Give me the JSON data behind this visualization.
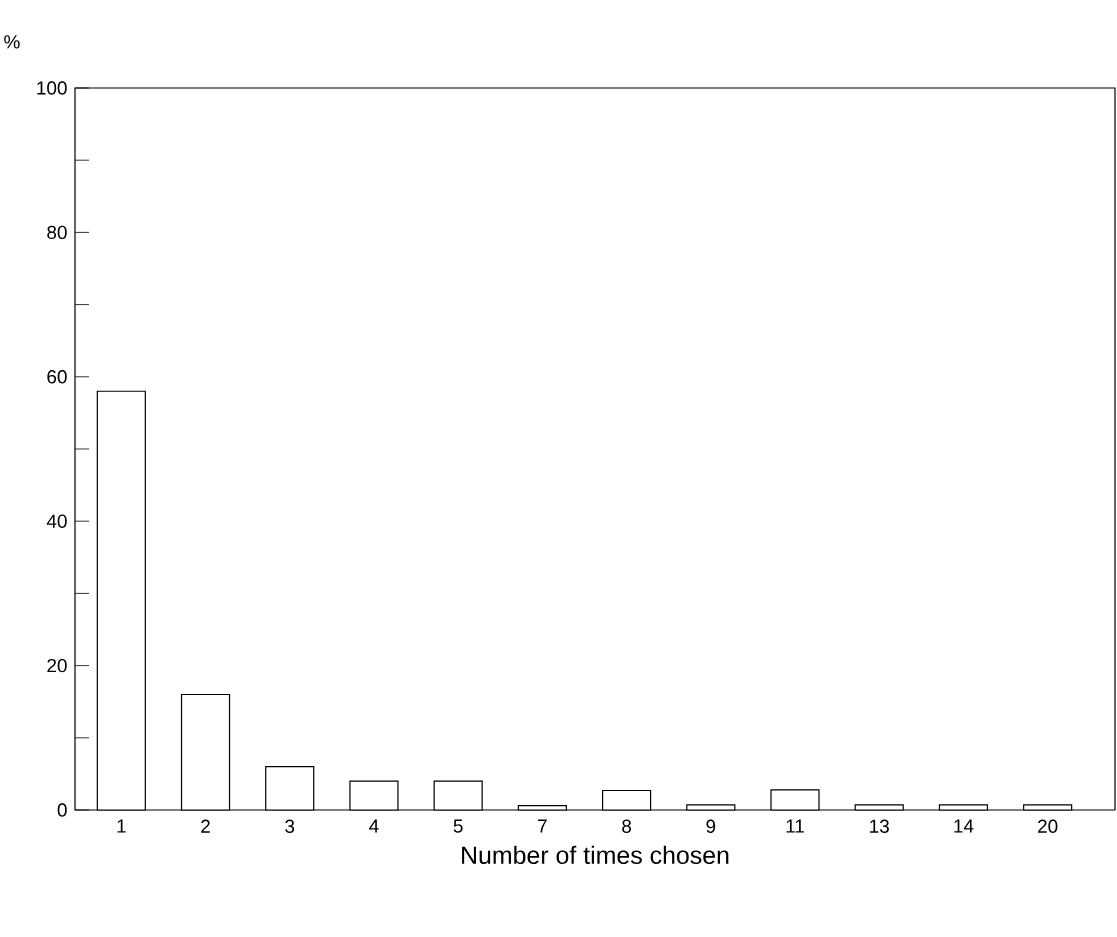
{
  "chart_data": {
    "type": "bar",
    "xlabel": "Number of times chosen",
    "ylabel": "%",
    "categories": [
      "1",
      "2",
      "3",
      "4",
      "5",
      "7",
      "8",
      "9",
      "11",
      "13",
      "14",
      "20"
    ],
    "values": [
      58,
      16,
      6,
      4,
      4,
      0.6,
      2.7,
      0.7,
      2.8,
      0.7,
      0.7,
      0.7
    ],
    "color": "#ffffff",
    "ylim": [
      0,
      100
    ],
    "yticks": [
      0,
      20,
      40,
      60,
      80,
      100
    ],
    "grid": false
  }
}
